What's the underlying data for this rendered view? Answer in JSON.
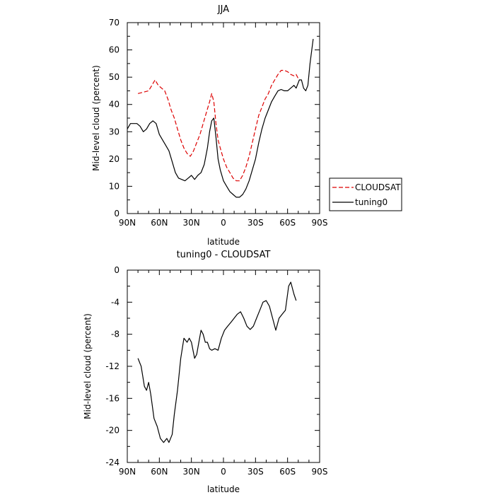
{
  "chart_data": [
    {
      "type": "line",
      "title": "JJA",
      "xlabel": "latitude",
      "ylabel": "Mid-level cloud (percent)",
      "xlim": [
        -90,
        90
      ],
      "ylim": [
        0,
        70
      ],
      "x_ticks": [
        -90,
        -60,
        -30,
        0,
        30,
        60,
        90
      ],
      "x_tick_labels": [
        "90N",
        "60N",
        "30N",
        "0",
        "30S",
        "60S",
        "90S"
      ],
      "y_ticks": [
        0,
        10,
        20,
        30,
        40,
        50,
        60,
        70
      ],
      "y_tick_labels": [
        "0",
        "10",
        "20",
        "30",
        "40",
        "50",
        "60",
        "70"
      ],
      "legend_position": "right",
      "series": [
        {
          "name": "CLOUDSAT",
          "color": "#dd0000",
          "dash": "dashed",
          "points": [
            [
              -80,
              44
            ],
            [
              -75,
              44.5
            ],
            [
              -70,
              45
            ],
            [
              -67,
              47
            ],
            [
              -64,
              49
            ],
            [
              -61,
              47
            ],
            [
              -58,
              46
            ],
            [
              -55,
              45
            ],
            [
              -52,
              42
            ],
            [
              -49,
              38
            ],
            [
              -46,
              35
            ],
            [
              -43,
              31
            ],
            [
              -40,
              27
            ],
            [
              -37,
              24
            ],
            [
              -34,
              22
            ],
            [
              -31,
              21
            ],
            [
              -28,
              23
            ],
            [
              -25,
              26
            ],
            [
              -22,
              29
            ],
            [
              -19,
              33
            ],
            [
              -16,
              37
            ],
            [
              -13,
              41
            ],
            [
              -11,
              44
            ],
            [
              -9,
              41
            ],
            [
              -7,
              33
            ],
            [
              -5,
              27
            ],
            [
              -3,
              24
            ],
            [
              0,
              20
            ],
            [
              3,
              17
            ],
            [
              6,
              15
            ],
            [
              9,
              13
            ],
            [
              12,
              12
            ],
            [
              15,
              12
            ],
            [
              18,
              14
            ],
            [
              21,
              17
            ],
            [
              24,
              21
            ],
            [
              27,
              26
            ],
            [
              30,
              31
            ],
            [
              33,
              36
            ],
            [
              36,
              39
            ],
            [
              39,
              42
            ],
            [
              42,
              44
            ],
            [
              45,
              47
            ],
            [
              48,
              49
            ],
            [
              51,
              51
            ],
            [
              54,
              52.5
            ],
            [
              57,
              52.5
            ],
            [
              60,
              52
            ],
            [
              63,
              51
            ],
            [
              66,
              50.5
            ],
            [
              68,
              51
            ],
            [
              70,
              49.5
            ]
          ]
        },
        {
          "name": "tuning0",
          "color": "#000000",
          "dash": "solid",
          "points": [
            [
              -90,
              31
            ],
            [
              -87,
              33
            ],
            [
              -84,
              33
            ],
            [
              -81,
              33
            ],
            [
              -78,
              32
            ],
            [
              -75,
              30
            ],
            [
              -72,
              31
            ],
            [
              -69,
              33
            ],
            [
              -66,
              34
            ],
            [
              -63,
              33
            ],
            [
              -60,
              29
            ],
            [
              -57,
              27
            ],
            [
              -54,
              25
            ],
            [
              -51,
              23
            ],
            [
              -48,
              19
            ],
            [
              -45,
              15
            ],
            [
              -42,
              13
            ],
            [
              -39,
              12.5
            ],
            [
              -36,
              12
            ],
            [
              -33,
              13
            ],
            [
              -30,
              14
            ],
            [
              -27,
              12.5
            ],
            [
              -24,
              14
            ],
            [
              -21,
              15
            ],
            [
              -18,
              18
            ],
            [
              -15,
              24
            ],
            [
              -13,
              30
            ],
            [
              -11,
              34
            ],
            [
              -9,
              35
            ],
            [
              -7,
              28
            ],
            [
              -5,
              20
            ],
            [
              -3,
              16
            ],
            [
              0,
              12
            ],
            [
              3,
              10
            ],
            [
              6,
              8
            ],
            [
              9,
              7
            ],
            [
              12,
              6
            ],
            [
              15,
              6
            ],
            [
              18,
              7
            ],
            [
              21,
              9
            ],
            [
              24,
              12
            ],
            [
              27,
              16
            ],
            [
              30,
              20
            ],
            [
              33,
              26
            ],
            [
              36,
              31
            ],
            [
              39,
              35
            ],
            [
              42,
              38
            ],
            [
              45,
              41
            ],
            [
              48,
              43
            ],
            [
              51,
              45
            ],
            [
              54,
              45.5
            ],
            [
              57,
              45
            ],
            [
              60,
              45
            ],
            [
              63,
              46
            ],
            [
              66,
              47
            ],
            [
              68,
              46
            ],
            [
              71,
              49
            ],
            [
              73,
              49
            ],
            [
              75,
              46
            ],
            [
              77,
              45
            ],
            [
              79,
              47
            ],
            [
              81,
              55
            ],
            [
              84,
              64
            ]
          ]
        }
      ]
    },
    {
      "type": "line",
      "title": "tuning0 - CLOUDSAT",
      "xlabel": "latitude",
      "ylabel": "Mid-level cloud (percent)",
      "xlim": [
        -90,
        90
      ],
      "ylim": [
        -24,
        0
      ],
      "x_ticks": [
        -90,
        -60,
        -30,
        0,
        30,
        60,
        90
      ],
      "x_tick_labels": [
        "90N",
        "60N",
        "30N",
        "0",
        "30S",
        "60S",
        "90S"
      ],
      "y_ticks": [
        -24,
        -20,
        -16,
        -12,
        -8,
        -4,
        0
      ],
      "y_tick_labels": [
        "-24",
        "-20",
        "-16",
        "-12",
        "-8",
        "-4",
        "0"
      ],
      "series": [
        {
          "color": "#000000",
          "dash": "solid",
          "points": [
            [
              -80,
              -11
            ],
            [
              -77,
              -12
            ],
            [
              -74,
              -14.5
            ],
            [
              -72,
              -15
            ],
            [
              -70,
              -14
            ],
            [
              -68,
              -15.5
            ],
            [
              -65,
              -18.5
            ],
            [
              -62,
              -19.5
            ],
            [
              -59,
              -21
            ],
            [
              -56,
              -21.5
            ],
            [
              -53,
              -21
            ],
            [
              -51,
              -21.5
            ],
            [
              -48,
              -20.5
            ],
            [
              -46,
              -18
            ],
            [
              -43,
              -15
            ],
            [
              -40,
              -11
            ],
            [
              -37,
              -8.5
            ],
            [
              -34,
              -9
            ],
            [
              -32,
              -8.5
            ],
            [
              -30,
              -9
            ],
            [
              -27,
              -11
            ],
            [
              -25,
              -10.5
            ],
            [
              -23,
              -9
            ],
            [
              -21,
              -7.5
            ],
            [
              -19,
              -8
            ],
            [
              -17,
              -9
            ],
            [
              -15,
              -9
            ],
            [
              -13,
              -9.8
            ],
            [
              -11,
              -10
            ],
            [
              -8,
              -9.8
            ],
            [
              -5,
              -10
            ],
            [
              -2,
              -8.5
            ],
            [
              1,
              -7.5
            ],
            [
              4,
              -7
            ],
            [
              7,
              -6.5
            ],
            [
              10,
              -6
            ],
            [
              13,
              -5.5
            ],
            [
              16,
              -5.2
            ],
            [
              19,
              -6
            ],
            [
              22,
              -7
            ],
            [
              25,
              -7.4
            ],
            [
              28,
              -7
            ],
            [
              31,
              -6
            ],
            [
              34,
              -5
            ],
            [
              37,
              -4
            ],
            [
              40,
              -3.8
            ],
            [
              43,
              -4.5
            ],
            [
              46,
              -6
            ],
            [
              49,
              -7.5
            ],
            [
              52,
              -6
            ],
            [
              55,
              -5.5
            ],
            [
              58,
              -5
            ],
            [
              61,
              -2
            ],
            [
              63,
              -1.5
            ],
            [
              66,
              -3
            ],
            [
              68,
              -3.8
            ]
          ]
        }
      ]
    }
  ]
}
